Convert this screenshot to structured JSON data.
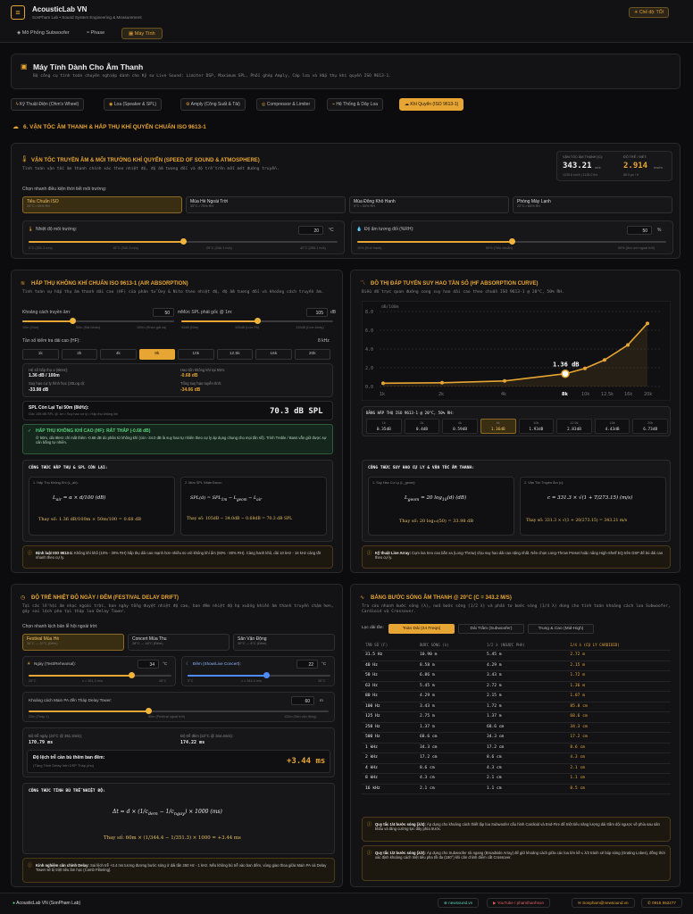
{
  "app": {
    "title": "AcousticLab VN",
    "subtitle": "SonPham Lab • Sound System Engineering & Measurement",
    "mode": "Chế độ: TỐI"
  },
  "nav": [
    "Mô Phỏng Subwoofer",
    "Phase",
    "Máy Tính"
  ],
  "page": {
    "title": "Máy Tính Dành Cho Âm Thanh",
    "desc": "Bộ công cụ tính toán chuyên nghiệp dành cho Kỹ sư Live Sound: Limiter DSP, Maximum SPL, Phối ghép Amply, Cáp loa và Hấp thụ khí quyển ISO 9613-1."
  },
  "tabs": [
    "Kỹ Thuật Điện (Ohm's Wheel)",
    "Loa (Speaker & SPL)",
    "Amply (Công Suất & Tải)",
    "Compressor & Limiter",
    "Hệ Thống & Dây Loa",
    "Khí Quyển (ISO 9613-1)"
  ],
  "section": {
    "title": "6. VẬN TỐC ÂM THANH & HẤP THỤ KHÍ QUYỂN CHUẨN ISO 9613-1"
  },
  "sos": {
    "title": "VẬN TỐC TRUYỀN ÂM & MÔI TRƯỜNG KHÍ QUYỂN (SPEED OF SOUND & ATMOSPHERE)",
    "desc": "Tính toán vận tốc âm thanh chính xác theo nhiệt độ, độ ẩm tương đối và độ trễ trên mỗi mét đường truyền.",
    "speed_label": "VẬN TỐC ÂM THANH (C):",
    "speed_value": "343.21",
    "speed_unit": "m/s",
    "speed_sub": "1235.6 km/h | 1126.0 ft/s",
    "delay_label": "ĐỘ TRỄ / MÉT:",
    "delay_value": "2.914",
    "delay_unit": "ms/m",
    "delay_sub": "88.9 µs / ft",
    "preset_label": "Chọn nhanh điều kiện thời tiết môi trường:",
    "presets": [
      {
        "t": "Tiêu Chuẩn ISO",
        "s": "20°C • 50% RH"
      },
      {
        "t": "Mùa Hè Ngoài Trời",
        "s": "35°C • 75% RH"
      },
      {
        "t": "Mùa Đông Khô Hanh",
        "s": "5°C • 30% RH"
      },
      {
        "t": "Phòng Máy Lạnh",
        "s": "22°C • 60% RH"
      }
    ],
    "temp_label": "Nhiệt độ môi trường:",
    "temp_value": "20",
    "temp_unit": "°C",
    "temp_fraction": 0.5,
    "temp_ticks": [
      "0°C (331.3 m/s)",
      "15°C (340.3 m/s)",
      "25°C (346.1 m/s)",
      "40°C (355.1 m/s)"
    ],
    "rh_label": "Độ ẩm tương đối (%RH):",
    "rh_value": "50",
    "rh_unit": "%",
    "rh_fraction": 0.5,
    "rh_ticks": [
      "10% (Khô hanh)",
      "50% (Tiêu chuẩn)",
      "90% (Ẩm ướt ngoài trời)"
    ]
  },
  "abs": {
    "title": "HẤP THỤ KHÔNG KHÍ CHUẨN ISO 9613-1 (AIR ABSORPTION)",
    "desc": "Tính toán sự hấp thụ âm thanh dải cao (HF) của phân tử Oxy & Nito theo nhiệt độ, độ ẩm tương đối và khoảng cách truyền âm.",
    "dist_label": "Khoảng cách truyền âm:",
    "dist_value": "50",
    "dist_unit": "m",
    "dist_fraction": 0.33,
    "dist_ticks": [
      "10m (Gần)",
      "50m (Sân khấu)",
      "100m (Khán giả xa)"
    ],
    "spl_label": "Mức SPL phát gốc @ 1m:",
    "spl_value": "105",
    "spl_unit": "dB",
    "spl_fraction": 0.5,
    "spl_ticks": [
      "90dB (Nhẹ)",
      "105dB (Live PA)",
      "130dB (Line Array)"
    ],
    "freq_label": "Tần số kiểm tra dải cao (HF):",
    "freq_current": "8 kHz",
    "freqs": [
      "1k",
      "2k",
      "4k",
      "8k",
      "10k",
      "12.5k",
      "16k",
      "20k"
    ],
    "coef_label": "Hệ số hấp thụ α (8kHz):",
    "coef_value": "1.36 dB / 100m",
    "loss_label": "Hao tổn không khí tại 50m:",
    "loss_value": "-0.68 dB",
    "geo_label": "Suy hao cự ly hình học (20Log d):",
    "geo_value": "-33.98 dB",
    "total_label": "Tổng suy hao tuyến tính:",
    "total_value": "-34.66 dB",
    "final_label": "SPL Còn Lại Tại 50m (8kHz):",
    "final_sub": "Gốc 105 dB SPL @ 1m • Suy hao cự ly • Hấp thụ không khí",
    "final_value": "70.3 dB SPL",
    "alert_title": "HẤP THỤ KHÔNG KHÍ CAO (HF): RẤT THẤP (-0.68 dB)",
    "alert_text": "Ở 50m, dải 8kHz chỉ mất thêm -0.68 dB do phân tử không khí (còn -34.0 dB là suy hao tự nhiên theo cự ly áp dụng chung cho mọi tần số). Trình Treble / Bass vẫn giữ được sự cân bằng tự nhiên.",
    "formula_title": "CÔNG THỨC HẤP THỤ & SPL CÒN LẠI:",
    "f1_title": "1. Hấp Thụ Không Khí (L_air):",
    "f1_result": "Thay số: 1.36 dB/100m × 50m/100 = 0.68 dB",
    "f2_title": "2. Mức SPL Nhận Được:",
    "f2_result": "Thay số: 105dB − 34.0dB − 0.68dB = 70.3 dB SPL",
    "note_label": "Định luật ISO 9613-1:",
    "note": "Không khí khô (10% - 30% RH) hấp thụ dải cao mạnh hơn nhiều so với không khí ẩm (60% - 80% RH). Càng hanh khô, dải 10 kHz - 16 kHz càng tắt nhanh theo cự ly."
  },
  "curve": {
    "title": "ĐỒ THỊ ĐÁP TUYẾN SUY HAO TẦN SỐ (HF ABSORPTION CURVE)",
    "desc": "Biểu đồ trực quan đường cong suy hao dải cao theo chuẩn ISO 9613-1 @ 20°C, 50% RH.",
    "highlight": "1.36 dB",
    "table_title": "BẢNG HẤP THỤ ISO 9613-1 @ 20°C, 50% RH:",
    "table": [
      {
        "f": "1k",
        "v": "0.35dB"
      },
      {
        "f": "2k",
        "v": "0.4dB"
      },
      {
        "f": "4k",
        "v": "0.59dB"
      },
      {
        "f": "8k",
        "v": "1.36dB"
      },
      {
        "f": "10k",
        "v": "1.93dB"
      },
      {
        "f": "12.5k",
        "v": "2.83dB"
      },
      {
        "f": "16k",
        "v": "4.43dB"
      },
      {
        "f": "20k",
        "v": "6.73dB"
      }
    ],
    "formula_title": "CÔNG THỨC SUY HAO CỰ LY & VẬN TỐC ÂM THANH:",
    "f1_title": "1. Suy Hao Cự Ly (L_geom):",
    "f1_result": "Thay số: 20 log₁₀(50) = 33.98 dB",
    "f2_title": "2. Vận Tốc Truyền Âm (c):",
    "f2_result": "Thay số: 331.3 × √(1 + 20/273.15) = 343.21 m/s",
    "note_label": "Kỹ thuật Line Array:",
    "note": "Cụm loa treo cao bắn xa (Long-Throw) chịu suy hao dải cao nặng nhất. Nên chọn Long-Throw Preset hoặc nâng High-Shelf EQ trên DSP để bù dải cao theo cự ly."
  },
  "chart_data": {
    "type": "line",
    "ylabel": "dB/100m",
    "categories": [
      "1k",
      "2k",
      "4k",
      "8k",
      "10k",
      "12.5k",
      "16k",
      "20k"
    ],
    "series": [
      {
        "values": [
          0.35,
          0.4,
          0.59,
          1.36,
          1.93,
          2.83,
          4.43,
          6.73
        ]
      }
    ],
    "ylim": [
      0,
      8
    ],
    "yticks": [
      "0.0",
      "2.0",
      "4.0",
      "6.0",
      "8.0"
    ],
    "highlight_index": 3
  },
  "drift": {
    "title": "ĐỘ TRỄ NHIỆT ĐỘ NGÀY / ĐÊM (FESTIVAL DELAY DRIFT)",
    "desc": "Tại các lễ hội âm nhạc ngoài trời, ban ngày tổng đuyệt nhiệt độ cao, ban đêm nhiệt độ hạ xuống khiến âm thanh truyền chậm hơn, gây sai lệch pha tại tháp loa Delay Tower.",
    "preset_label": "Chọn nhanh kịch bản lễ hội ngoài trời:",
    "presets": [
      {
        "t": "Festival Mùa Hè",
        "s": "34°C → 22°C (Đêm)"
      },
      {
        "t": "Concert Mùa Thu",
        "s": "28°C → 18°C (Đêm)"
      },
      {
        "t": "Sân Vận Động",
        "s": "30°C → 8°C (Đêm)"
      }
    ],
    "day_label": "Ngày (Test/Rehearsal):",
    "day_value": "34",
    "day_unit": "°C",
    "day_fraction": 0.72,
    "day_ticks": [
      "20°C",
      "c = 351.3 m/s",
      "45°C"
    ],
    "night_label": "Đêm (Show/Live Concert):",
    "night_value": "22",
    "night_unit": "°C",
    "night_fraction": 0.55,
    "night_ticks": [
      "0°C",
      "c = 344.4 m/s",
      "35°C"
    ],
    "dist_label": "Khoảng cách Main PA đến Tháp Delay Tower:",
    "dist_value": "60",
    "dist_unit": "m",
    "dist_fraction": 0.4,
    "dist_ticks": [
      "20m (Tháp 1)",
      "60m (Festival ngoài trời)",
      "120m (Sân vận động)"
    ],
    "day_result_label": "Độ trễ ngày (34°C @ 351.3m/s):",
    "day_result": "170.79 ms",
    "night_result_label": "Độ trễ đêm (22°C @ 344.4m/s):",
    "night_result": "174.22 ms",
    "diff_label": "Độ lệch trễ cần bù thêm ban đêm:",
    "diff_sub": "(Tăng Time Delay trên DSP Tháp phụ)",
    "diff_value": "+3.44 ms",
    "formula_title": "CÔNG THỨC TÍNH BÙ TRỄ NHIỆT ĐỘ:",
    "result": "Thay số: 60m × (1/344.4 − 1/351.3) × 1000 = +3.44 ms",
    "note_label": "Kinh nghiệm căn chỉnh Delay:",
    "note": "Sai lệch trễ +3.4 ms tương đương bước sóng ở dải tần 250 Hz - 1 kHz. Nếu không bù trễ vào ban đêm, vùng giao thoa giữa Main PA và Delay Tower sẽ bị triệt tiêu âm học (Comb Filtering)."
  },
  "wave": {
    "title": "BẢNG BƯỚC SÓNG ÂM THANH @ 20°C (C = 343.2 M/S)",
    "desc": "Tra cứu nhanh bước sóng (λ), nửa bước sóng (1/2 λ) và phần tư bước sóng (1/4 λ) dùng cho tính toán khoảng cách loa Subwoofer, Cardioid và Crossover.",
    "filter_label": "Lọc dải tần:",
    "filters": [
      "Toàn Dải (24 Freqs)",
      "Dải Trầm (Subwoofer)",
      "Trung & Cao (Mid-High)"
    ],
    "headers": [
      "TẦN SỐ (F)",
      "BƯỚC SÓNG (λ)",
      "1/2 λ (NGƯỢC PHA)",
      "1/4 λ (CỤ LY CARDIOID)"
    ],
    "rows": [
      [
        "31.5 Hz",
        "10.90 m",
        "5.45 m",
        "2.72 m"
      ],
      [
        "40 Hz",
        "8.58 m",
        "4.29 m",
        "2.15 m"
      ],
      [
        "50 Hz",
        "6.86 m",
        "3.43 m",
        "1.72 m"
      ],
      [
        "63 Hz",
        "5.45 m",
        "2.72 m",
        "1.36 m"
      ],
      [
        "80 Hz",
        "4.29 m",
        "2.15 m",
        "1.07 m"
      ],
      [
        "100 Hz",
        "3.43 m",
        "1.72 m",
        "85.8 cm"
      ],
      [
        "125 Hz",
        "2.75 m",
        "1.37 m",
        "68.6 cm"
      ],
      [
        "250 Hz",
        "1.37 m",
        "68.6 cm",
        "34.3 cm"
      ],
      [
        "500 Hz",
        "68.6 cm",
        "34.3 cm",
        "17.2 cm"
      ],
      [
        "1 kHz",
        "34.3 cm",
        "17.2 cm",
        "8.6 cm"
      ],
      [
        "2 kHz",
        "17.2 cm",
        "8.6 cm",
        "4.3 cm"
      ],
      [
        "4 kHz",
        "8.6 cm",
        "4.3 cm",
        "2.1 cm"
      ],
      [
        "8 kHz",
        "4.3 cm",
        "2.1 cm",
        "1.1 cm"
      ],
      [
        "16 kHz",
        "2.1 cm",
        "1.1 cm",
        "0.5 cm"
      ]
    ],
    "note1_label": "Quy tắc 1/4 bước sóng (λ/4):",
    "note1": "Áp dụng cho khoảng cách thiết lập loa Subwoofer cấu hình Cardioid và End-Fire để triệt tiêu năng lượng dải trầm dội ngược về phía sau sân khấu và tăng cường lực đẩy phía trước.",
    "note2_label": "Quy tắc 1/2 bước sóng (λ/2):",
    "note2": "Áp dụng cho Subwoofer rải ngang (Broadside Array) để giữ khoảng cách giữa các loa lớn kề ≤ λ/2 tránh xẻ búp sóng (Grating Lobes), đồng thời xác định khoảng cách triệt tiêu pha tối đa (180°) khi căn chỉnh điểm cắt Crossover."
  },
  "footer": {
    "brand": "AcousticLab VN (SonPham Lab)",
    "links": [
      "newsound.vn",
      "YouTube / phamthanhson",
      "Sonpham@newsound.vn",
      "0915 552277"
    ]
  }
}
